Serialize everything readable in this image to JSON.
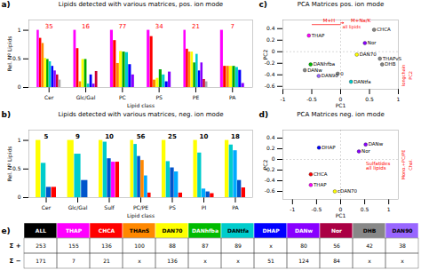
{
  "chart_data": [
    {
      "type": "bar",
      "panel": "a)",
      "title": "Lipids detected with various matrices, pos. ion mode",
      "xlabel": "Lipid class",
      "ylabel": "Rel. Nº Lipids",
      "categories": [
        "Cer",
        "Glc/Gal",
        "PC",
        "PS",
        "PE",
        "PA"
      ],
      "values": [
        [
          1.0,
          0.86,
          0.77,
          0.51,
          0.49,
          0.45,
          0.37,
          0.29,
          0.22,
          0.13
        ],
        [
          1.0,
          0.68,
          0.1,
          0.49,
          0.49,
          0.06,
          0.22,
          0.06,
          0.28
        ],
        [
          1.0,
          0.82,
          0.42,
          0.63,
          0.62,
          0.61,
          0.4,
          0.22
        ],
        [
          1.0,
          0.89,
          0.13,
          0.16,
          0.31,
          0.22,
          0.1,
          0.27
        ],
        [
          1.0,
          0.67,
          0.62,
          0.62,
          0.43,
          0.58,
          0.29,
          0.43,
          0.14,
          0.1
        ],
        [
          1.0,
          0.37,
          0.37,
          0.37,
          0.37,
          0.35,
          0.3,
          0.07
        ]
      ],
      "colors": [
        [
          "#ff00ff",
          "#ff0000",
          "#ff8800",
          "#ffff00",
          "#00aa00",
          "#00cccc",
          "#0000ff",
          "#8800ff",
          "#cc0033",
          "#aaaaaa"
        ],
        [
          "#ff00ff",
          "#ff0000",
          "#ff8800",
          "#ffff00",
          "#00aa00",
          "#00cccc",
          "#0000ff",
          "#8800ff",
          "#cc0033"
        ],
        [
          "#ff00ff",
          "#ff0000",
          "#ff8800",
          "#ffff00",
          "#00aa00",
          "#00cccc",
          "#0000ff",
          "#8800ff"
        ],
        [
          "#ff00ff",
          "#ff0000",
          "#ff8800",
          "#ffff00",
          "#00aa00",
          "#00cccc",
          "#0000ff",
          "#8800ff"
        ],
        [
          "#ff00ff",
          "#ff0000",
          "#ff8800",
          "#ffff00",
          "#00aa00",
          "#00cccc",
          "#0000ff",
          "#8800ff",
          "#cc0033",
          "#aaaaaa"
        ],
        [
          "#ff00ff",
          "#ff0000",
          "#ff8800",
          "#ffff00",
          "#00aa00",
          "#00cccc",
          "#0000ff",
          "#8800ff"
        ]
      ],
      "ylim": [
        0,
        1.18
      ],
      "yticks": [
        0,
        0.5,
        1
      ],
      "annotations": [
        {
          "category": "Cer",
          "text": "35",
          "color": "red"
        },
        {
          "category": "Glc/Gal",
          "text": "16",
          "color": "red"
        },
        {
          "category": "PC",
          "text": "77",
          "color": "red"
        },
        {
          "category": "PS",
          "text": "34",
          "color": "red"
        },
        {
          "category": "PE",
          "text": "21",
          "color": "red"
        },
        {
          "category": "PA",
          "text": "7",
          "color": "red"
        }
      ]
    },
    {
      "type": "bar",
      "panel": "b)",
      "title": "Lipids detected with various matrices, neg. ion mode",
      "xlabel": "Lipid class",
      "ylabel": "Rel. Nº Lipids",
      "categories": [
        "Cer",
        "Glc/Gal",
        "Sulf",
        "PC/PE",
        "PS",
        "PI",
        "PA"
      ],
      "values": [
        [
          1.0,
          0.6,
          0.18,
          0.18
        ],
        [
          1.0,
          0.76,
          0.3
        ],
        [
          1.0,
          0.97,
          0.68,
          0.62,
          0.62
        ],
        [
          1.0,
          0.93,
          0.72,
          0.65,
          0.38,
          0.08
        ],
        [
          1.0,
          0.63,
          0.52,
          0.45,
          0.08
        ],
        [
          1.0,
          0.78,
          0.15,
          0.1,
          0.07
        ],
        [
          1.0,
          0.92,
          0.82,
          0.3,
          0.17
        ]
      ],
      "colors": [
        [
          "#ffff00",
          "#00cccc",
          "#0055cc",
          "#ff0000"
        ],
        [
          "#ffff00",
          "#00cccc",
          "#0055cc"
        ],
        [
          "#ffff00",
          "#00cccc",
          "#0055cc",
          "#ff00ff",
          "#ff0000"
        ],
        [
          "#ffff00",
          "#00cccc",
          "#0055cc",
          "#ff8800",
          "#00aaff",
          "#ff0000"
        ],
        [
          "#ffff00",
          "#00cccc",
          "#0055cc",
          "#00aaff",
          "#ff0000"
        ],
        [
          "#ffff00",
          "#00cccc",
          "#00aaff",
          "#0055cc",
          "#ff0000"
        ],
        [
          "#ffff00",
          "#00cccc",
          "#00aaff",
          "#0055cc",
          "#ff0000"
        ]
      ],
      "ylim": [
        0,
        1.18
      ],
      "yticks": [
        0,
        0.5,
        1
      ],
      "annotations": [
        {
          "category": "Cer",
          "text": "5",
          "color": "black"
        },
        {
          "category": "Glc/Gal",
          "text": "9",
          "color": "black"
        },
        {
          "category": "Sulf",
          "text": "10",
          "color": "black"
        },
        {
          "category": "PC/PE",
          "text": "56",
          "color": "black"
        },
        {
          "category": "PS",
          "text": "25",
          "color": "black"
        },
        {
          "category": "PI",
          "text": "10",
          "color": "black"
        },
        {
          "category": "PA",
          "text": "18",
          "color": "black"
        }
      ]
    },
    {
      "type": "scatter",
      "panel": "c)",
      "title": "PCA Matrices pos. ion mode",
      "xlabel": "PC1",
      "ylabel": "PC2",
      "xlim": [
        -1.0,
        1.0
      ],
      "xticks": [
        -1,
        -0.5,
        0,
        0.5,
        1
      ],
      "ylim": [
        -0.65,
        0.55
      ],
      "yticks": [
        -0.6,
        -0.4,
        -0.2,
        0,
        0.2,
        0.4
      ],
      "points": [
        {
          "x": -0.55,
          "y": 0.28,
          "color": "#ff00ff",
          "label": "THAP"
        },
        {
          "x": 0.58,
          "y": 0.38,
          "color": "#888888",
          "label": "CHCA"
        },
        {
          "x": 0.42,
          "y": 0.15,
          "color": "#8800ff",
          "label": "Nor"
        },
        {
          "x": 0.28,
          "y": -0.05,
          "color": "#ffff00",
          "label": "DAN70"
        },
        {
          "x": 0.68,
          "y": -0.12,
          "color": "#888888",
          "label": "THAPvS"
        },
        {
          "x": 0.72,
          "y": -0.22,
          "color": "#888888",
          "label": "DHB"
        },
        {
          "x": -0.52,
          "y": -0.22,
          "color": "#00bb00",
          "label": "DANhfba"
        },
        {
          "x": -0.62,
          "y": -0.32,
          "color": "#888888",
          "label": "DANw"
        },
        {
          "x": -0.38,
          "y": -0.42,
          "color": "#9966ff",
          "label": "DAN90"
        },
        {
          "x": -0.05,
          "y": -0.38,
          "color": "#888888",
          "label": "0"
        },
        {
          "x": 0.18,
          "y": -0.52,
          "color": "#00cccc",
          "label": "DANtfa"
        }
      ],
      "reference_lines": [
        {
          "y": 0,
          "color": "gray",
          "line_style": "dashed"
        },
        {
          "x": 0,
          "color": "gray",
          "line_style": "dashed"
        }
      ],
      "lines": [
        {
          "x1": -0.5,
          "x2": 0.0,
          "y": 0.47,
          "color": "red"
        }
      ],
      "arrows": [
        {
          "x1": 0.0,
          "x2": 0.05,
          "y": 0.5,
          "color": "red"
        }
      ],
      "annotations": [
        {
          "text": "M+H",
          "color": "red",
          "x": -0.2,
          "y": 0.5
        },
        {
          "text": "M+Na/K",
          "color": "red",
          "x": 0.35,
          "y": 0.5
        },
        {
          "text": "all lipids",
          "color": "red",
          "x": 0.0,
          "y": 0.47
        },
        {
          "text": "longchain",
          "color": "red",
          "position": "right"
        },
        {
          "text": "PC2",
          "color": "red",
          "position": "right"
        }
      ]
    },
    {
      "type": "scatter",
      "panel": "d)",
      "title": "PCA Matrices neg. ion mode",
      "xlabel": "PC1",
      "ylabel": "PC2",
      "xlim": [
        -1.2,
        1.2
      ],
      "xticks": [
        -1,
        -0.5,
        0,
        0.5,
        1
      ],
      "ylim": [
        -0.75,
        0.55
      ],
      "yticks": [
        -0.6,
        -0.4,
        -0.2,
        0,
        0.2,
        0.4
      ],
      "points": [
        {
          "x": -0.45,
          "y": 0.22,
          "color": "#0000ff",
          "label": "DHAP"
        },
        {
          "x": 0.52,
          "y": 0.28,
          "color": "#8800ff",
          "label": "DANw"
        },
        {
          "x": 0.38,
          "y": 0.15,
          "color": "#8800ff",
          "label": "Nor"
        },
        {
          "x": -0.62,
          "y": -0.28,
          "color": "#ff0000",
          "label": "CHCA"
        },
        {
          "x": -0.62,
          "y": -0.48,
          "color": "#ff00ff",
          "label": "THAP"
        },
        {
          "x": -0.12,
          "y": -0.6,
          "color": "#ffff00",
          "label": "cDAN70"
        }
      ],
      "reference_lines": [
        {
          "y": 0,
          "color": "gray",
          "line_style": "dashed"
        },
        {
          "x": 0,
          "color": "gray",
          "line_style": "dashed"
        }
      ],
      "annotations": [
        {
          "text": "Sulfatides",
          "color": "red",
          "position": "inside"
        },
        {
          "text": "all lipids",
          "color": "red",
          "position": "inside"
        },
        {
          "text": "Mono.+PC/PE",
          "color": "red",
          "position": "right"
        },
        {
          "text": "Chol.",
          "color": "red",
          "position": "right"
        }
      ]
    },
    {
      "type": "table",
      "panel": "e)",
      "tick_labels": false,
      "categories": [
        "ALL",
        "THAP",
        "CHCA",
        "THAnS",
        "DAN70",
        "DANhfba",
        "DANtfa",
        "DHAP",
        "DANw",
        "Nor",
        "DHB",
        "DAN90"
      ],
      "colors": [
        "#000000",
        "#ff00ff",
        "#ff0000",
        "#ff8800",
        "#ffff00",
        "#00bb00",
        "#00cccc",
        "#0000ff",
        "#8800ff",
        "#aa0044",
        "#888888",
        "#9966ff"
      ],
      "series": [
        {
          "name": "Σ +",
          "values": [
            253,
            155,
            136,
            100,
            88,
            87,
            89,
            "x",
            80,
            56,
            42,
            38
          ]
        },
        {
          "name": "Σ −",
          "values": [
            171,
            7,
            21,
            "x",
            136,
            "x",
            "x",
            51,
            124,
            84,
            "x",
            "x"
          ]
        }
      ]
    }
  ]
}
